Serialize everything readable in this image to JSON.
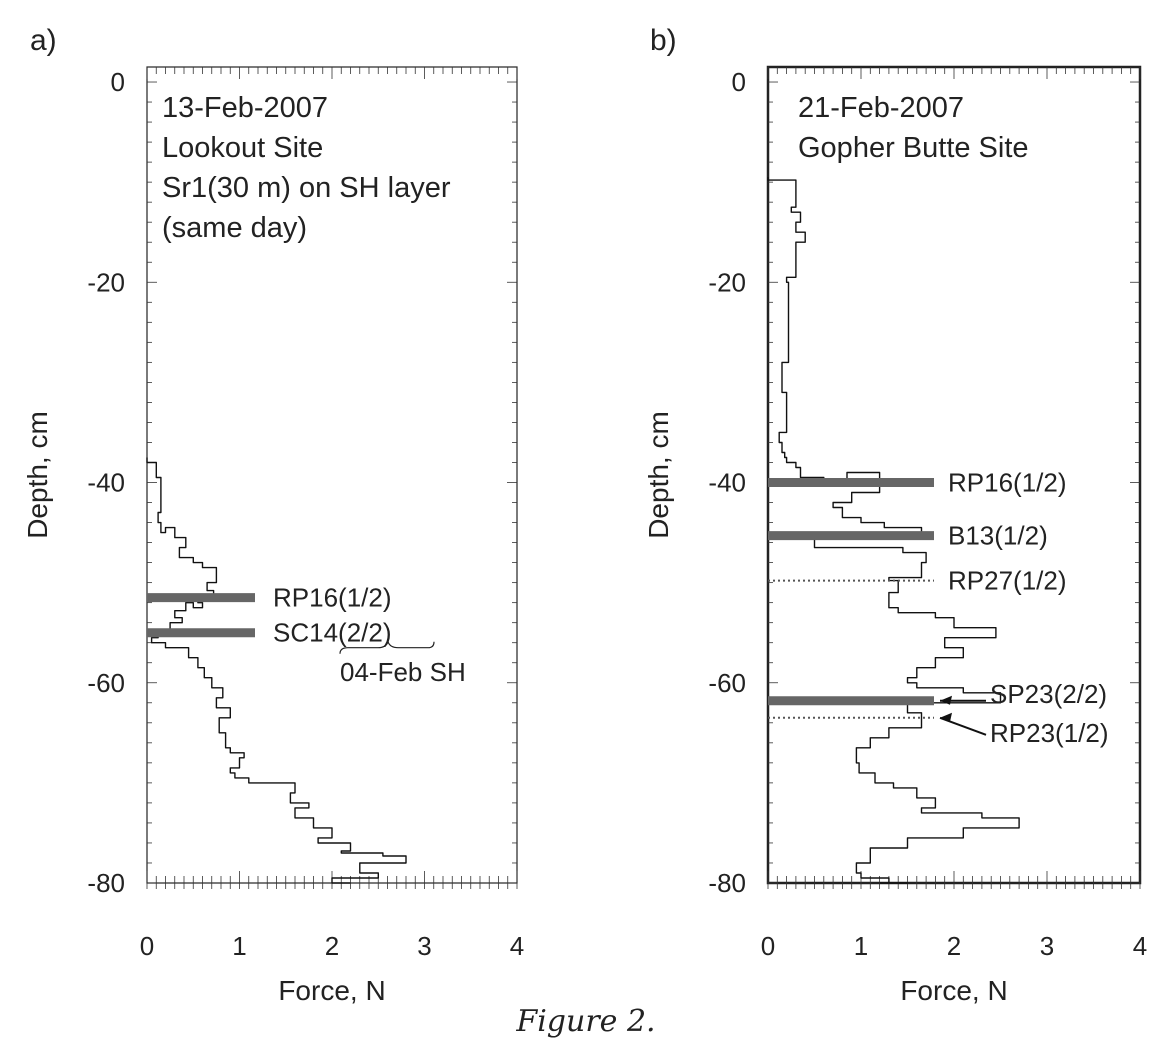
{
  "figure_caption": "Figure 2.",
  "chart_data": [
    {
      "panel_label": "a)",
      "type": "line",
      "annotation_lines": [
        "13-Feb-2007",
        "Lookout Site",
        "Sr1(30 m) on SH layer",
        "(same day)"
      ],
      "xlabel": "Force, N",
      "ylabel": "Depth, cm",
      "xlim": [
        0,
        4
      ],
      "ylim": [
        -80,
        1.5
      ],
      "xticks": [
        0,
        1,
        2,
        3,
        4
      ],
      "yticks": [
        0,
        -20,
        -40,
        -60,
        -80
      ],
      "xtick_labels": [
        "0",
        "1",
        "2",
        "3",
        "4"
      ],
      "ytick_labels": [
        "0",
        "-20",
        "-40",
        "-60",
        "-80"
      ],
      "profile": {
        "force": [
          0,
          0.1,
          0.15,
          0.15,
          0.12,
          0.15,
          0.2,
          0.3,
          0.42,
          0.35,
          0.5,
          0.6,
          0.75,
          0.65,
          0.72,
          0.55,
          0.6,
          0.5,
          0.42,
          0.3,
          0.38,
          0.25,
          0.18,
          0.12,
          0.05,
          0.2,
          0.45,
          0.55,
          0.62,
          0.7,
          0.82,
          0.75,
          0.9,
          0.78,
          0.85,
          0.9,
          1.05,
          1.0,
          0.9,
          0.95,
          1.1,
          1.6,
          1.55,
          1.75,
          1.6,
          1.8,
          2.0,
          1.85,
          2.2,
          2.1,
          2.55,
          2.8,
          2.3,
          2.5,
          2.0,
          2.2
        ],
        "depth": [
          -37.5,
          -38.0,
          -39.5,
          -41.5,
          -43.0,
          -44.0,
          -45.0,
          -44.5,
          -45.5,
          -46.5,
          -47.5,
          -48.0,
          -48.5,
          -50.0,
          -50.8,
          -51.5,
          -52.0,
          -52.5,
          -52.0,
          -52.8,
          -53.5,
          -54.0,
          -54.7,
          -55.0,
          -55.5,
          -56.0,
          -56.5,
          -57.5,
          -58.5,
          -59.5,
          -60.5,
          -61.5,
          -62.5,
          -63.5,
          -65.0,
          -66.5,
          -67.0,
          -67.5,
          -68.5,
          -69.0,
          -69.5,
          -70.0,
          -71.0,
          -72.0,
          -72.5,
          -73.5,
          -74.5,
          -75.5,
          -76.0,
          -76.8,
          -77.0,
          -77.3,
          -78.0,
          -79.0,
          -79.5,
          -80.0
        ]
      },
      "layer_markers": [
        {
          "label": "RP16(1/2)",
          "depth": -51.5,
          "style": "thick"
        },
        {
          "label": "SC14(2/2)",
          "depth": -55.0,
          "style": "thick"
        }
      ],
      "extra_annotations": [
        "04-Feb SH"
      ]
    },
    {
      "panel_label": "b)",
      "type": "line",
      "annotation_lines": [
        "21-Feb-2007",
        "Gopher Butte Site"
      ],
      "xlabel": "Force, N",
      "ylabel": "Depth, cm",
      "xlim": [
        0,
        4
      ],
      "ylim": [
        -80,
        1.5
      ],
      "xticks": [
        0,
        1,
        2,
        3,
        4
      ],
      "yticks": [
        0,
        -20,
        -40,
        -60,
        -80
      ],
      "xtick_labels": [
        "0",
        "1",
        "2",
        "3",
        "4"
      ],
      "ytick_labels": [
        "0",
        "-20",
        "-40",
        "-60",
        "-80"
      ],
      "profile": {
        "force": [
          0,
          0.3,
          0.25,
          0.35,
          0.3,
          0.4,
          0.3,
          0.2,
          0.22,
          0.15,
          0.2,
          0.2,
          0.12,
          0.15,
          0.18,
          0.2,
          0.3,
          0.35,
          0.6,
          0.85,
          1.2,
          0.9,
          0.7,
          0.8,
          1.0,
          1.25,
          1.65,
          0.5,
          1.45,
          1.7,
          1.65,
          1.3,
          1.4,
          1.3,
          1.4,
          1.8,
          2.0,
          2.45,
          1.9,
          2.1,
          1.8,
          1.6,
          1.5,
          1.6,
          2.1,
          2.5,
          1.5,
          1.65,
          1.3,
          1.1,
          0.95,
          0.98,
          1.15,
          1.35,
          1.6,
          1.8,
          1.65,
          2.3,
          2.7,
          2.1,
          1.5,
          1.1,
          0.95,
          1.0,
          1.3,
          1.5,
          1.2
        ],
        "depth": [
          -9.5,
          -9.8,
          -12.5,
          -13.0,
          -14.0,
          -15.0,
          -16.0,
          -19.5,
          -20.0,
          -28.0,
          -31.0,
          -33.0,
          -35.0,
          -36.0,
          -37.0,
          -37.5,
          -38.0,
          -38.5,
          -39.5,
          -39.8,
          -39.0,
          -41.0,
          -42.0,
          -42.5,
          -43.5,
          -44.0,
          -44.5,
          -45.5,
          -46.5,
          -47.0,
          -48.0,
          -49.5,
          -49.8,
          -51.0,
          -52.5,
          -53.0,
          -53.5,
          -54.5,
          -55.5,
          -56.5,
          -57.5,
          -58.5,
          -59.5,
          -60.0,
          -60.5,
          -61.0,
          -62.0,
          -63.0,
          -64.5,
          -65.5,
          -66.5,
          -68.0,
          -69.0,
          -70.0,
          -70.5,
          -71.5,
          -72.5,
          -73.0,
          -73.5,
          -74.5,
          -75.5,
          -76.5,
          -78.0,
          -79.0,
          -79.5,
          -80.0,
          -80.0
        ]
      },
      "layer_markers": [
        {
          "label": "RP16(1/2)",
          "depth": -40.0,
          "style": "thick"
        },
        {
          "label": "B13(1/2)",
          "depth": -45.3,
          "style": "thick"
        },
        {
          "label": "RP27(1/2)",
          "depth": -49.8,
          "style": "dotted"
        },
        {
          "label": "SP23(2/2)",
          "depth": -61.8,
          "style": "thick",
          "arrow": true
        },
        {
          "label": "RP23(1/2)",
          "depth": -63.5,
          "style": "dotted",
          "arrow": true
        }
      ]
    }
  ]
}
